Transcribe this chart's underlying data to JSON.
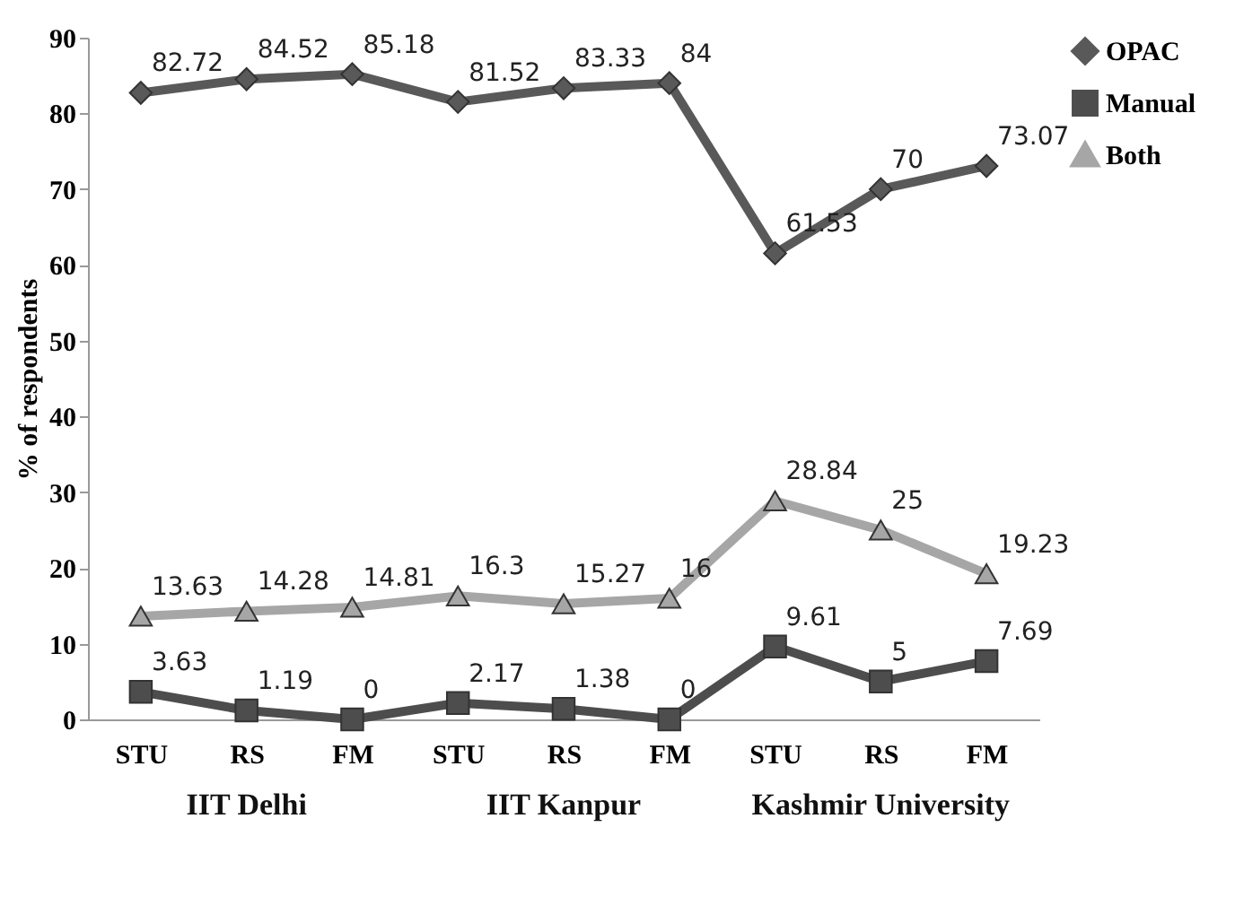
{
  "chart_data": {
    "type": "line",
    "ylabel": "% of respondents",
    "categories": [
      "STU",
      "RS",
      "FM",
      "STU",
      "RS",
      "FM",
      "STU",
      "RS",
      "FM"
    ],
    "series": [
      {
        "name": "OPAC",
        "color": "#595959",
        "marker": "diamond",
        "values": [
          82.72,
          84.52,
          85.18,
          81.52,
          83.33,
          84,
          61.53,
          70,
          73.07
        ]
      },
      {
        "name": "Manual",
        "color": "#4d4d4d",
        "marker": "square",
        "values": [
          3.63,
          1.19,
          0,
          2.17,
          1.38,
          0,
          9.61,
          5,
          7.69
        ]
      },
      {
        "name": "Both",
        "color": "#a6a6a6",
        "marker": "triangle",
        "values": [
          13.63,
          14.28,
          14.81,
          16.3,
          15.27,
          16,
          28.84,
          25,
          19.23
        ]
      }
    ],
    "annotations": [
      "IIT Delhi",
      "IIT Kanpur",
      "Kashmir University"
    ],
    "ylim": [
      0,
      90
    ],
    "yticks": [
      0,
      10,
      20,
      30,
      40,
      50,
      60,
      70,
      80,
      90
    ],
    "data_labels": true,
    "grid": false,
    "legend": "right"
  }
}
